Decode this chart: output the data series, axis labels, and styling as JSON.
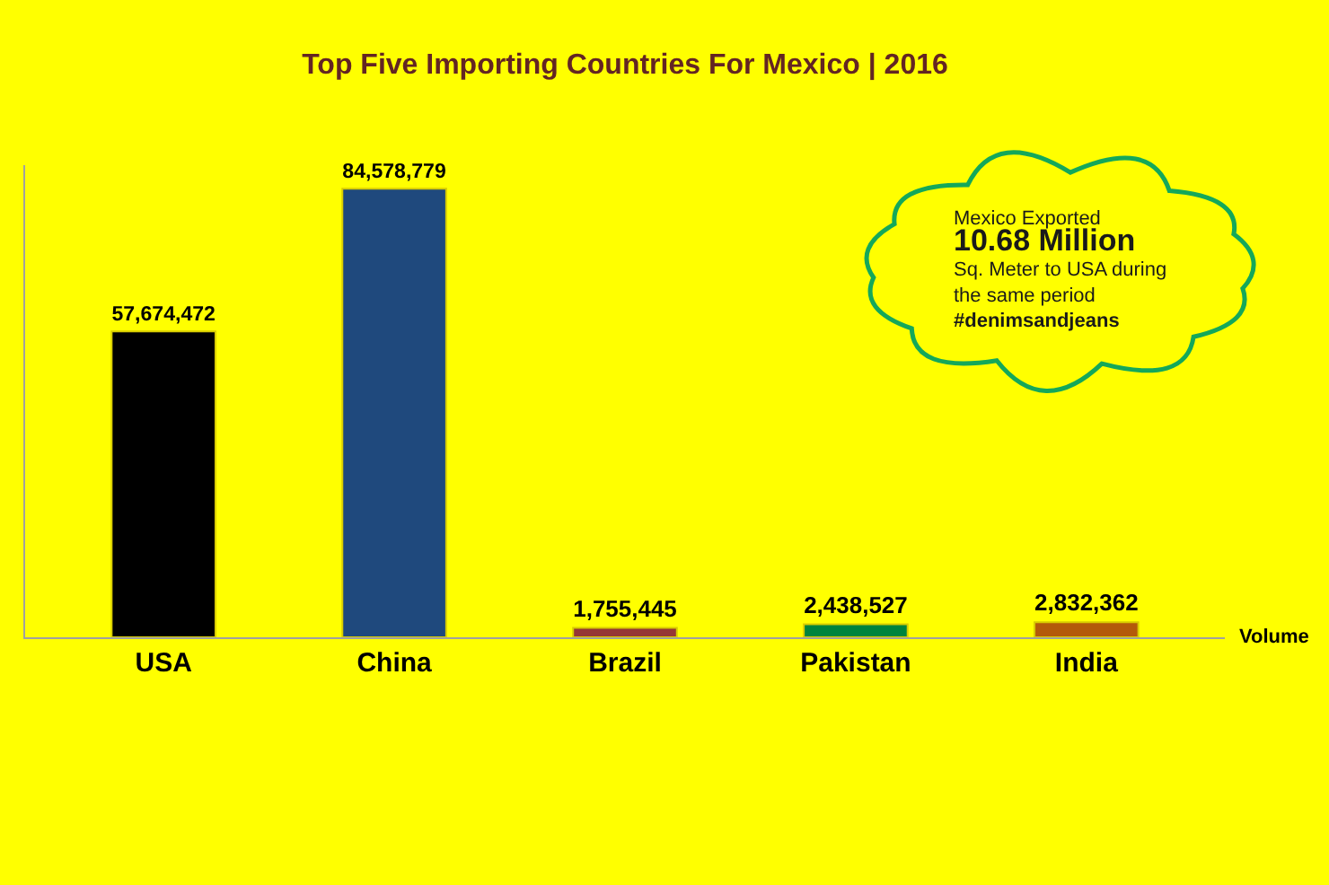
{
  "chart_data": {
    "type": "bar",
    "title": "Top Five Importing Countries For Mexico | 2016",
    "xlabel": "Volume",
    "categories": [
      "USA",
      "China",
      "Brazil",
      "Pakistan",
      "India"
    ],
    "values": [
      57674472,
      84578779,
      1755445,
      2438527,
      2832362
    ],
    "value_labels": [
      "57,674,472",
      "84,578,779",
      "1,755,445",
      "2,438,527",
      "2,832,362"
    ],
    "colors": [
      "#000000",
      "#1f497d",
      "#953735",
      "#00843d",
      "#b35a0a"
    ],
    "tick_labels": "x",
    "annotations": [
      "Mexico Exported\n10.68 Million\nSq. Meter to USA during\nthe same period\n#denimsandjeans"
    ]
  }
}
